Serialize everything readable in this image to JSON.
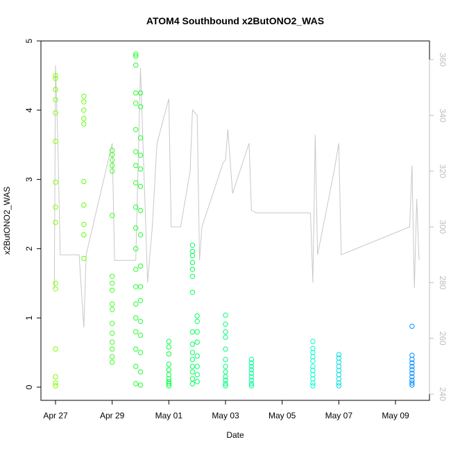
{
  "chart_data": {
    "type": "scatter",
    "title": "ATOM4 Southbound x2ButONO2_WAS",
    "xlabel": "Date",
    "ylabel": "x2ButONO2_WAS",
    "x_axis_type": "date",
    "xlim": [
      "2016-04-26 18:00",
      "2016-05-10 00:00"
    ],
    "ylim": [
      0,
      5
    ],
    "y2lim": [
      240,
      362
    ],
    "x_ticks": [
      "Apr 27",
      "Apr 29",
      "May 01",
      "May 03",
      "May 05",
      "May 07",
      "May 09"
    ],
    "x_tick_dates": [
      "2016-04-27",
      "2016-04-29",
      "2016-05-01",
      "2016-05-03",
      "2016-05-05",
      "2016-05-07",
      "2016-05-09"
    ],
    "y_ticks": [
      "0",
      "1",
      "2",
      "3",
      "4",
      "5"
    ],
    "y2_ticks": [
      "240",
      "260",
      "280",
      "300",
      "320",
      "340",
      "360"
    ],
    "y2_tick_values": [
      240,
      260,
      280,
      300,
      320,
      340,
      360
    ],
    "grid": false,
    "colors": {
      "right_axis": "#bdbdbd",
      "secondary_line": "#c8c8c8",
      "marker_scale": [
        "#7fff00",
        "#00ff40",
        "#00ffd0",
        "#0090ff"
      ]
    },
    "series": [
      {
        "role": "primary",
        "marker": "open-circle",
        "points": [
          {
            "x": "2016-04-27 00:00",
            "y": 4.5
          },
          {
            "x": "2016-04-27 00:00",
            "y": 4.46
          },
          {
            "x": "2016-04-27 00:00",
            "y": 4.3
          },
          {
            "x": "2016-04-27 00:00",
            "y": 4.15
          },
          {
            "x": "2016-04-27 00:00",
            "y": 3.96
          },
          {
            "x": "2016-04-27 00:00",
            "y": 3.55
          },
          {
            "x": "2016-04-27 00:00",
            "y": 2.96
          },
          {
            "x": "2016-04-27 00:00",
            "y": 2.6
          },
          {
            "x": "2016-04-27 00:00",
            "y": 2.38
          },
          {
            "x": "2016-04-27 00:00",
            "y": 1.5
          },
          {
            "x": "2016-04-27 00:00",
            "y": 1.42
          },
          {
            "x": "2016-04-27 00:00",
            "y": 0.55
          },
          {
            "x": "2016-04-27 00:00",
            "y": 0.15
          },
          {
            "x": "2016-04-27 00:00",
            "y": 0.06
          },
          {
            "x": "2016-04-27 00:00",
            "y": 0.02
          },
          {
            "x": "2016-04-28 00:00",
            "y": 4.2
          },
          {
            "x": "2016-04-28 00:00",
            "y": 4.12
          },
          {
            "x": "2016-04-28 00:00",
            "y": 4.0
          },
          {
            "x": "2016-04-28 00:00",
            "y": 3.88
          },
          {
            "x": "2016-04-28 00:00",
            "y": 3.8
          },
          {
            "x": "2016-04-28 00:00",
            "y": 2.97
          },
          {
            "x": "2016-04-28 00:00",
            "y": 2.63
          },
          {
            "x": "2016-04-28 00:00",
            "y": 2.35
          },
          {
            "x": "2016-04-28 00:00",
            "y": 2.2
          },
          {
            "x": "2016-04-28 00:00",
            "y": 1.86
          },
          {
            "x": "2016-04-29 00:00",
            "y": 3.42
          },
          {
            "x": "2016-04-29 00:00",
            "y": 3.36
          },
          {
            "x": "2016-04-29 00:00",
            "y": 3.28
          },
          {
            "x": "2016-04-29 00:00",
            "y": 3.2
          },
          {
            "x": "2016-04-29 00:00",
            "y": 3.12
          },
          {
            "x": "2016-04-29 00:00",
            "y": 2.48
          },
          {
            "x": "2016-04-29 00:00",
            "y": 1.6
          },
          {
            "x": "2016-04-29 00:00",
            "y": 1.5
          },
          {
            "x": "2016-04-29 00:00",
            "y": 1.4
          },
          {
            "x": "2016-04-29 00:00",
            "y": 1.2
          },
          {
            "x": "2016-04-29 00:00",
            "y": 1.12
          },
          {
            "x": "2016-04-29 00:00",
            "y": 0.92
          },
          {
            "x": "2016-04-29 00:00",
            "y": 0.78
          },
          {
            "x": "2016-04-29 00:00",
            "y": 0.65
          },
          {
            "x": "2016-04-29 00:00",
            "y": 0.55
          },
          {
            "x": "2016-04-29 00:00",
            "y": 0.44
          },
          {
            "x": "2016-04-29 00:00",
            "y": 0.36
          },
          {
            "x": "2016-04-29 20:00",
            "y": 4.81
          },
          {
            "x": "2016-04-29 20:00",
            "y": 4.78
          },
          {
            "x": "2016-04-29 20:00",
            "y": 4.65
          },
          {
            "x": "2016-04-29 20:00",
            "y": 4.25
          },
          {
            "x": "2016-04-29 20:00",
            "y": 4.1
          },
          {
            "x": "2016-04-29 20:00",
            "y": 3.72
          },
          {
            "x": "2016-04-29 20:00",
            "y": 3.4
          },
          {
            "x": "2016-04-29 20:00",
            "y": 3.2
          },
          {
            "x": "2016-04-29 20:00",
            "y": 2.95
          },
          {
            "x": "2016-04-29 20:00",
            "y": 2.6
          },
          {
            "x": "2016-04-29 20:00",
            "y": 2.3
          },
          {
            "x": "2016-04-29 20:00",
            "y": 2.0
          },
          {
            "x": "2016-04-29 20:00",
            "y": 1.7
          },
          {
            "x": "2016-04-29 20:00",
            "y": 1.45
          },
          {
            "x": "2016-04-29 20:00",
            "y": 1.2
          },
          {
            "x": "2016-04-29 20:00",
            "y": 1.0
          },
          {
            "x": "2016-04-29 20:00",
            "y": 0.8
          },
          {
            "x": "2016-04-29 20:00",
            "y": 0.55
          },
          {
            "x": "2016-04-29 20:00",
            "y": 0.3
          },
          {
            "x": "2016-04-29 20:00",
            "y": 0.05
          },
          {
            "x": "2016-04-30 00:00",
            "y": 4.25
          },
          {
            "x": "2016-04-30 00:00",
            "y": 4.05
          },
          {
            "x": "2016-04-30 00:00",
            "y": 3.6
          },
          {
            "x": "2016-04-30 00:00",
            "y": 3.35
          },
          {
            "x": "2016-04-30 00:00",
            "y": 3.15
          },
          {
            "x": "2016-04-30 00:00",
            "y": 2.9
          },
          {
            "x": "2016-04-30 00:00",
            "y": 2.55
          },
          {
            "x": "2016-04-30 00:00",
            "y": 2.2
          },
          {
            "x": "2016-04-30 00:00",
            "y": 1.75
          },
          {
            "x": "2016-04-30 00:00",
            "y": 1.45
          },
          {
            "x": "2016-04-30 00:00",
            "y": 1.25
          },
          {
            "x": "2016-04-30 00:00",
            "y": 0.95
          },
          {
            "x": "2016-04-30 00:00",
            "y": 0.75
          },
          {
            "x": "2016-04-30 00:00",
            "y": 0.5
          },
          {
            "x": "2016-04-30 00:00",
            "y": 0.22
          },
          {
            "x": "2016-04-30 00:00",
            "y": 0.03
          },
          {
            "x": "2016-05-01 00:00",
            "y": 0.66
          },
          {
            "x": "2016-05-01 00:00",
            "y": 0.58
          },
          {
            "x": "2016-05-01 00:00",
            "y": 0.48
          },
          {
            "x": "2016-05-01 00:00",
            "y": 0.33
          },
          {
            "x": "2016-05-01 00:00",
            "y": 0.25
          },
          {
            "x": "2016-05-01 00:00",
            "y": 0.18
          },
          {
            "x": "2016-05-01 00:00",
            "y": 0.12
          },
          {
            "x": "2016-05-01 00:00",
            "y": 0.08
          },
          {
            "x": "2016-05-01 00:00",
            "y": 0.05
          },
          {
            "x": "2016-05-01 00:00",
            "y": 0.02
          },
          {
            "x": "2016-05-01 20:00",
            "y": 2.05
          },
          {
            "x": "2016-05-01 20:00",
            "y": 1.96
          },
          {
            "x": "2016-05-01 20:00",
            "y": 1.9
          },
          {
            "x": "2016-05-01 20:00",
            "y": 1.8
          },
          {
            "x": "2016-05-01 20:00",
            "y": 1.7
          },
          {
            "x": "2016-05-01 20:00",
            "y": 1.6
          },
          {
            "x": "2016-05-01 20:00",
            "y": 1.37
          },
          {
            "x": "2016-05-01 20:00",
            "y": 0.8
          },
          {
            "x": "2016-05-01 20:00",
            "y": 0.62
          },
          {
            "x": "2016-05-01 20:00",
            "y": 0.5
          },
          {
            "x": "2016-05-01 20:00",
            "y": 0.4
          },
          {
            "x": "2016-05-01 20:00",
            "y": 0.3
          },
          {
            "x": "2016-05-01 20:00",
            "y": 0.22
          },
          {
            "x": "2016-05-01 20:00",
            "y": 0.12
          },
          {
            "x": "2016-05-01 20:00",
            "y": 0.05
          },
          {
            "x": "2016-05-02 00:00",
            "y": 1.03
          },
          {
            "x": "2016-05-02 00:00",
            "y": 0.95
          },
          {
            "x": "2016-05-02 00:00",
            "y": 0.8
          },
          {
            "x": "2016-05-02 00:00",
            "y": 0.65
          },
          {
            "x": "2016-05-02 00:00",
            "y": 0.45
          },
          {
            "x": "2016-05-02 00:00",
            "y": 0.3
          },
          {
            "x": "2016-05-02 00:00",
            "y": 0.18
          },
          {
            "x": "2016-05-02 00:00",
            "y": 0.08
          },
          {
            "x": "2016-05-03 00:00",
            "y": 1.04
          },
          {
            "x": "2016-05-03 00:00",
            "y": 0.91
          },
          {
            "x": "2016-05-03 00:00",
            "y": 0.8
          },
          {
            "x": "2016-05-03 00:00",
            "y": 0.72
          },
          {
            "x": "2016-05-03 00:00",
            "y": 0.55
          },
          {
            "x": "2016-05-03 00:00",
            "y": 0.4
          },
          {
            "x": "2016-05-03 00:00",
            "y": 0.3
          },
          {
            "x": "2016-05-03 00:00",
            "y": 0.22
          },
          {
            "x": "2016-05-03 00:00",
            "y": 0.15
          },
          {
            "x": "2016-05-03 00:00",
            "y": 0.1
          },
          {
            "x": "2016-05-03 00:00",
            "y": 0.05
          },
          {
            "x": "2016-05-03 00:00",
            "y": 0.02
          },
          {
            "x": "2016-05-03 22:00",
            "y": 0.4
          },
          {
            "x": "2016-05-03 22:00",
            "y": 0.35
          },
          {
            "x": "2016-05-03 22:00",
            "y": 0.3
          },
          {
            "x": "2016-05-03 22:00",
            "y": 0.25
          },
          {
            "x": "2016-05-03 22:00",
            "y": 0.2
          },
          {
            "x": "2016-05-03 22:00",
            "y": 0.15
          },
          {
            "x": "2016-05-03 22:00",
            "y": 0.1
          },
          {
            "x": "2016-05-03 22:00",
            "y": 0.05
          },
          {
            "x": "2016-05-03 22:00",
            "y": 0.02
          },
          {
            "x": "2016-05-06 02:00",
            "y": 0.66
          },
          {
            "x": "2016-05-06 02:00",
            "y": 0.56
          },
          {
            "x": "2016-05-06 02:00",
            "y": 0.5
          },
          {
            "x": "2016-05-06 02:00",
            "y": 0.44
          },
          {
            "x": "2016-05-06 02:00",
            "y": 0.38
          },
          {
            "x": "2016-05-06 02:00",
            "y": 0.3
          },
          {
            "x": "2016-05-06 02:00",
            "y": 0.24
          },
          {
            "x": "2016-05-06 02:00",
            "y": 0.18
          },
          {
            "x": "2016-05-06 02:00",
            "y": 0.12
          },
          {
            "x": "2016-05-06 02:00",
            "y": 0.06
          },
          {
            "x": "2016-05-06 02:00",
            "y": 0.02
          },
          {
            "x": "2016-05-07 00:00",
            "y": 0.47
          },
          {
            "x": "2016-05-07 00:00",
            "y": 0.42
          },
          {
            "x": "2016-05-07 00:00",
            "y": 0.36
          },
          {
            "x": "2016-05-07 00:00",
            "y": 0.3
          },
          {
            "x": "2016-05-07 00:00",
            "y": 0.24
          },
          {
            "x": "2016-05-07 00:00",
            "y": 0.18
          },
          {
            "x": "2016-05-07 00:00",
            "y": 0.12
          },
          {
            "x": "2016-05-07 00:00",
            "y": 0.06
          },
          {
            "x": "2016-05-07 00:00",
            "y": 0.02
          },
          {
            "x": "2016-05-09 14:00",
            "y": 0.88
          },
          {
            "x": "2016-05-09 14:00",
            "y": 0.46
          },
          {
            "x": "2016-05-09 14:00",
            "y": 0.4
          },
          {
            "x": "2016-05-09 14:00",
            "y": 0.35
          },
          {
            "x": "2016-05-09 14:00",
            "y": 0.3
          },
          {
            "x": "2016-05-09 14:00",
            "y": 0.25
          },
          {
            "x": "2016-05-09 14:00",
            "y": 0.2
          },
          {
            "x": "2016-05-09 14:00",
            "y": 0.15
          },
          {
            "x": "2016-05-09 14:00",
            "y": 0.1
          },
          {
            "x": "2016-05-09 14:00",
            "y": 0.06
          },
          {
            "x": "2016-05-09 14:00",
            "y": 0.03
          }
        ]
      },
      {
        "role": "secondary",
        "axis": "right",
        "type": "line",
        "points": [
          {
            "x": "2016-04-26 23:00",
            "y": 278
          },
          {
            "x": "2016-04-27 00:00",
            "y": 358
          },
          {
            "x": "2016-04-27 02:00",
            "y": 330
          },
          {
            "x": "2016-04-27 04:00",
            "y": 290
          },
          {
            "x": "2016-04-27 20:00",
            "y": 290
          },
          {
            "x": "2016-04-28 00:00",
            "y": 264
          },
          {
            "x": "2016-04-28 02:00",
            "y": 290
          },
          {
            "x": "2016-04-29 00:00",
            "y": 330
          },
          {
            "x": "2016-04-29 02:00",
            "y": 288
          },
          {
            "x": "2016-04-29 04:00",
            "y": 288
          },
          {
            "x": "2016-04-29 20:00",
            "y": 288
          },
          {
            "x": "2016-04-30 00:00",
            "y": 357
          },
          {
            "x": "2016-04-30 06:00",
            "y": 280
          },
          {
            "x": "2016-04-30 10:00",
            "y": 300
          },
          {
            "x": "2016-04-30 14:00",
            "y": 330
          },
          {
            "x": "2016-05-01 00:00",
            "y": 346
          },
          {
            "x": "2016-05-01 02:00",
            "y": 300
          },
          {
            "x": "2016-05-01 10:00",
            "y": 300
          },
          {
            "x": "2016-05-01 18:00",
            "y": 320
          },
          {
            "x": "2016-05-01 20:00",
            "y": 342
          },
          {
            "x": "2016-05-02 00:00",
            "y": 340
          },
          {
            "x": "2016-05-02 02:00",
            "y": 288
          },
          {
            "x": "2016-05-02 04:00",
            "y": 300
          },
          {
            "x": "2016-05-02 22:00",
            "y": 323
          },
          {
            "x": "2016-05-03 00:00",
            "y": 324
          },
          {
            "x": "2016-05-03 02:00",
            "y": 335
          },
          {
            "x": "2016-05-03 06:00",
            "y": 312
          },
          {
            "x": "2016-05-03 20:00",
            "y": 330
          },
          {
            "x": "2016-05-03 22:00",
            "y": 306
          },
          {
            "x": "2016-05-04 02:00",
            "y": 305
          },
          {
            "x": "2016-05-06 00:00",
            "y": 305
          },
          {
            "x": "2016-05-06 02:00",
            "y": 280
          },
          {
            "x": "2016-05-06 04:00",
            "y": 333
          },
          {
            "x": "2016-05-06 06:00",
            "y": 290
          },
          {
            "x": "2016-05-06 20:00",
            "y": 320
          },
          {
            "x": "2016-05-07 00:00",
            "y": 330
          },
          {
            "x": "2016-05-07 02:00",
            "y": 290
          },
          {
            "x": "2016-05-09 12:00",
            "y": 300
          },
          {
            "x": "2016-05-09 14:00",
            "y": 322
          },
          {
            "x": "2016-05-09 16:00",
            "y": 278
          },
          {
            "x": "2016-05-09 18:00",
            "y": 310
          },
          {
            "x": "2016-05-09 20:00",
            "y": 288
          }
        ]
      }
    ]
  }
}
